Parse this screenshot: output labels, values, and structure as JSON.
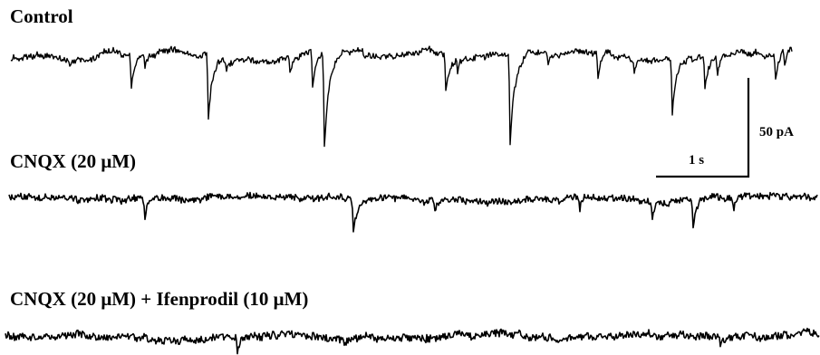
{
  "panels": [
    {
      "label": "Control"
    },
    {
      "label": "CNQX (20 μM)"
    },
    {
      "label": "CNQX (20 μM) + Ifenprodil (10 μM)"
    }
  ],
  "scale_bar": {
    "vertical_label": "50 pA",
    "horizontal_label": "1 s"
  },
  "colors": {
    "trace": "#000000",
    "background": "#ffffff"
  }
}
